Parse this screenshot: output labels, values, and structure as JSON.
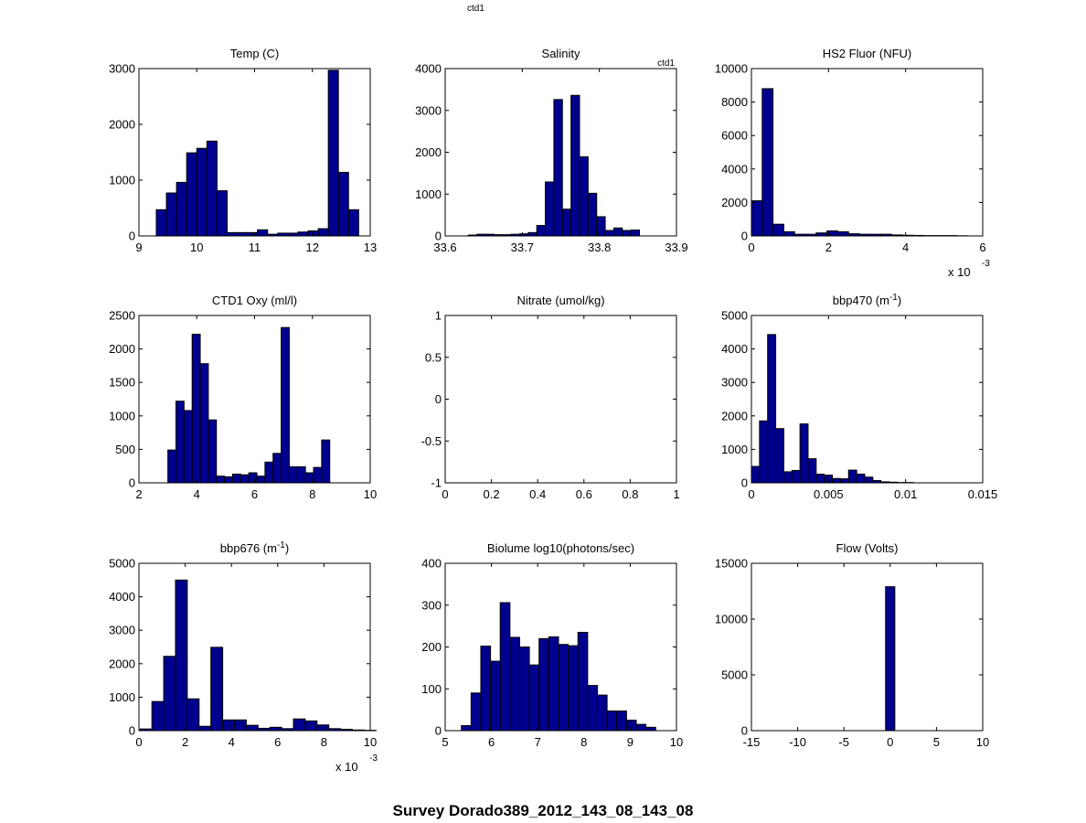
{
  "figure": {
    "top_label": "ctd1",
    "title": "Survey Dorado389_2012_143_08_143_08",
    "bar_color": "#00008f",
    "edge_color": "#000000"
  },
  "chart_data": [
    {
      "type": "bar",
      "title": "Temp (C)",
      "xlim": [
        9,
        13
      ],
      "ylim": [
        0,
        3000
      ],
      "xticks": [
        "9",
        "10",
        "11",
        "12",
        "13"
      ],
      "yticks": [
        "0",
        "1000",
        "2000",
        "3000"
      ],
      "bin_start": 9.3,
      "bin_width": 0.175,
      "values": [
        470,
        770,
        960,
        1490,
        1570,
        1700,
        810,
        60,
        60,
        60,
        110,
        30,
        50,
        50,
        70,
        90,
        130,
        2970,
        1140,
        470
      ]
    },
    {
      "type": "bar",
      "title": "Salinity",
      "annotation": "ctd1",
      "xlim": [
        33.6,
        33.9
      ],
      "ylim": [
        0,
        4000
      ],
      "xticks": [
        "33.6",
        "33.7",
        "33.8",
        "33.9"
      ],
      "yticks": [
        "0",
        "1000",
        "2000",
        "3000",
        "4000"
      ],
      "bin_start": 33.63,
      "bin_width": 0.0111,
      "values": [
        20,
        40,
        40,
        30,
        30,
        40,
        50,
        80,
        250,
        1290,
        3260,
        640,
        3360,
        1890,
        1020,
        460,
        130,
        190,
        130,
        140
      ]
    },
    {
      "type": "bar",
      "title": "HS2 Fluor (NFU)",
      "xlim": [
        0,
        6
      ],
      "ylim": [
        0,
        10000
      ],
      "xticks": [
        "0",
        "2",
        "4",
        "6"
      ],
      "yticks": [
        "0",
        "2000",
        "4000",
        "6000",
        "8000",
        "10000"
      ],
      "x_exponent": "x 10",
      "x_exponent_power": "-3",
      "bin_start": 0,
      "bin_width": 0.28,
      "values": [
        2100,
        8800,
        700,
        250,
        100,
        100,
        180,
        300,
        250,
        130,
        100,
        100,
        100,
        60,
        40,
        30,
        20,
        20,
        20,
        10
      ]
    },
    {
      "type": "bar",
      "title": "CTD1 Oxy (ml/l)",
      "xlim": [
        2,
        10
      ],
      "ylim": [
        0,
        2500
      ],
      "xticks": [
        "2",
        "4",
        "6",
        "8",
        "10"
      ],
      "yticks": [
        "0",
        "500",
        "1000",
        "1500",
        "2000",
        "2500"
      ],
      "bin_start": 3.0,
      "bin_width": 0.28,
      "values": [
        490,
        1220,
        1080,
        2220,
        1780,
        940,
        100,
        90,
        130,
        120,
        150,
        100,
        310,
        440,
        2320,
        240,
        240,
        150,
        230,
        640
      ]
    },
    {
      "type": "bar",
      "title": "Nitrate (umol/kg)",
      "xlim": [
        0,
        1
      ],
      "ylim": [
        -1,
        1
      ],
      "xticks": [
        "0",
        "0.2",
        "0.4",
        "0.6",
        "0.8",
        "1"
      ],
      "yticks": [
        "-1",
        "-0.5",
        "0",
        "0.5",
        "1"
      ],
      "bin_start": 0,
      "bin_width": 0.05,
      "values": []
    },
    {
      "type": "bar",
      "title": "bbp470 (m",
      "title_superscript": "-1",
      "title_suffix": ")",
      "xlim": [
        0,
        0.015
      ],
      "ylim": [
        0,
        5000
      ],
      "xticks": [
        "0",
        "0.005",
        "0.01",
        "0.015"
      ],
      "yticks": [
        "0",
        "1000",
        "2000",
        "3000",
        "4000",
        "5000"
      ],
      "bin_start": 0,
      "bin_width": 0.000525,
      "values": [
        490,
        1850,
        4430,
        1620,
        330,
        370,
        1760,
        720,
        260,
        230,
        130,
        120,
        380,
        260,
        170,
        70,
        30,
        20,
        10,
        10
      ]
    },
    {
      "type": "bar",
      "title": "bbp676 (m",
      "title_superscript": "-1",
      "title_suffix": ")",
      "xlim": [
        0,
        10
      ],
      "ylim": [
        0,
        5000
      ],
      "xticks": [
        "0",
        "2",
        "4",
        "6",
        "8",
        "10"
      ],
      "yticks": [
        "0",
        "1000",
        "2000",
        "3000",
        "4000",
        "5000"
      ],
      "x_exponent": "x 10",
      "x_exponent_power": "-3",
      "bin_start": 0.05,
      "bin_width": 0.51,
      "values": [
        50,
        870,
        2220,
        4500,
        950,
        130,
        2490,
        320,
        320,
        160,
        70,
        100,
        60,
        350,
        290,
        170,
        60,
        40,
        20,
        10
      ]
    },
    {
      "type": "bar",
      "title": "Biolume log10(photons/sec)",
      "xlim": [
        5,
        10
      ],
      "ylim": [
        0,
        400
      ],
      "xticks": [
        "5",
        "6",
        "7",
        "8",
        "9",
        "10"
      ],
      "yticks": [
        "0",
        "100",
        "200",
        "300",
        "400"
      ],
      "bin_start": 5.35,
      "bin_width": 0.21,
      "values": [
        12,
        90,
        202,
        166,
        306,
        223,
        200,
        157,
        220,
        224,
        206,
        203,
        235,
        108,
        85,
        47,
        47,
        25,
        15,
        8
      ]
    },
    {
      "type": "bar",
      "title": "Flow (Volts)",
      "xlim": [
        -15,
        10
      ],
      "ylim": [
        0,
        15000
      ],
      "xticks": [
        "-15",
        "-10",
        "-5",
        "0",
        "5",
        "10"
      ],
      "yticks": [
        "0",
        "5000",
        "10000",
        "15000"
      ],
      "bin_start": -0.5,
      "bin_width": 1.0,
      "values": [
        12900
      ]
    }
  ]
}
